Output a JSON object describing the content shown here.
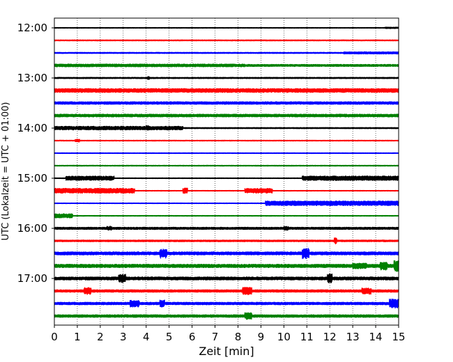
{
  "chart_data": {
    "type": "line",
    "subtype": "helicorder-seismogram",
    "title": "",
    "xlabel": "Zeit  [min]",
    "ylabel": "UTC (Lokalzeit = UTC + 01:00)",
    "xlim": [
      0,
      15
    ],
    "x_ticks": [
      0,
      1,
      2,
      3,
      4,
      5,
      6,
      7,
      8,
      9,
      10,
      11,
      12,
      13,
      14,
      15
    ],
    "x_tick_labels": [
      "0",
      "1",
      "2",
      "3",
      "4",
      "5",
      "6",
      "7",
      "8",
      "9",
      "10",
      "11",
      "12",
      "13",
      "14",
      "15"
    ],
    "y_tick_labels": [
      "12:00",
      "13:00",
      "14:00",
      "15:00",
      "16:00",
      "17:00"
    ],
    "trace_interval_min": 15,
    "trace_start": "12:00",
    "trace_count": 24,
    "trace_color_cycle": [
      "#000000",
      "#ff0000",
      "#0000ff",
      "#008000"
    ],
    "x_grid": "dotted vertical lines at each minute",
    "series": [
      {
        "start": "12:00",
        "color": "#000000",
        "noise": 0.5,
        "events": [
          [
            14.4,
            15,
            1.0
          ]
        ]
      },
      {
        "start": "12:15",
        "color": "#ff0000",
        "noise": 0.7,
        "events": []
      },
      {
        "start": "12:30",
        "color": "#0000ff",
        "noise": 0.8,
        "events": [
          [
            12.6,
            15,
            1.6
          ]
        ]
      },
      {
        "start": "12:45",
        "color": "#008000",
        "noise": 1.5,
        "events": [
          [
            0,
            8.3,
            2.0
          ]
        ]
      },
      {
        "start": "13:00",
        "color": "#000000",
        "noise": 0.9,
        "events": [
          [
            4.05,
            4.15,
            2.2
          ]
        ]
      },
      {
        "start": "13:15",
        "color": "#ff0000",
        "noise": 2.8,
        "events": []
      },
      {
        "start": "13:30",
        "color": "#0000ff",
        "noise": 1.9,
        "events": []
      },
      {
        "start": "13:45",
        "color": "#008000",
        "noise": 2.0,
        "events": []
      },
      {
        "start": "14:00",
        "color": "#000000",
        "noise": 0.8,
        "events": [
          [
            0,
            5.6,
            2.6
          ],
          [
            4.0,
            4.1,
            3.5
          ]
        ]
      },
      {
        "start": "14:15",
        "color": "#ff0000",
        "noise": 0.6,
        "events": [
          [
            0.9,
            1.1,
            2.0
          ]
        ]
      },
      {
        "start": "14:30",
        "color": "#0000ff",
        "noise": 0.5,
        "events": []
      },
      {
        "start": "14:45",
        "color": "#008000",
        "noise": 0.6,
        "events": []
      },
      {
        "start": "15:00",
        "color": "#000000",
        "noise": 0.5,
        "events": [
          [
            0.5,
            2.6,
            3.0
          ],
          [
            10.8,
            15,
            3.2
          ]
        ]
      },
      {
        "start": "15:15",
        "color": "#ff0000",
        "noise": 0.5,
        "events": [
          [
            0,
            3.5,
            3.5
          ],
          [
            5.6,
            5.8,
            4.0
          ],
          [
            8.3,
            9.5,
            3.4
          ]
        ]
      },
      {
        "start": "15:30",
        "color": "#0000ff",
        "noise": 0.5,
        "events": [
          [
            9.2,
            15,
            3.3
          ]
        ]
      },
      {
        "start": "15:45",
        "color": "#008000",
        "noise": 0.5,
        "events": [
          [
            0,
            0.8,
            3.0
          ]
        ]
      },
      {
        "start": "16:00",
        "color": "#000000",
        "noise": 1.6,
        "events": [
          [
            2.3,
            2.5,
            3.0
          ],
          [
            10.0,
            10.2,
            3.0
          ]
        ]
      },
      {
        "start": "16:15",
        "color": "#ff0000",
        "noise": 1.2,
        "events": [
          [
            12.2,
            12.3,
            4.5
          ]
        ]
      },
      {
        "start": "16:30",
        "color": "#0000ff",
        "noise": 2.2,
        "events": [
          [
            4.6,
            4.9,
            7.0
          ],
          [
            10.8,
            11.1,
            7.5
          ]
        ]
      },
      {
        "start": "16:45",
        "color": "#008000",
        "noise": 2.4,
        "events": [
          [
            13.0,
            13.6,
            4.0
          ],
          [
            14.2,
            14.5,
            6.0
          ],
          [
            14.8,
            15,
            8.0
          ]
        ]
      },
      {
        "start": "17:00",
        "color": "#000000",
        "noise": 2.2,
        "events": [
          [
            2.8,
            3.1,
            6.0
          ],
          [
            11.9,
            12.1,
            6.5
          ]
        ]
      },
      {
        "start": "17:15",
        "color": "#ff0000",
        "noise": 1.8,
        "events": [
          [
            1.3,
            1.6,
            5.0
          ],
          [
            8.2,
            8.6,
            5.5
          ],
          [
            13.4,
            13.8,
            4.5
          ]
        ]
      },
      {
        "start": "17:30",
        "color": "#0000ff",
        "noise": 1.8,
        "events": [
          [
            3.3,
            3.7,
            5.0
          ],
          [
            4.6,
            4.8,
            5.0
          ],
          [
            14.6,
            15,
            6.5
          ]
        ]
      },
      {
        "start": "17:45",
        "color": "#008000",
        "noise": 1.9,
        "events": [
          [
            8.3,
            8.6,
            5.0
          ]
        ]
      }
    ]
  }
}
